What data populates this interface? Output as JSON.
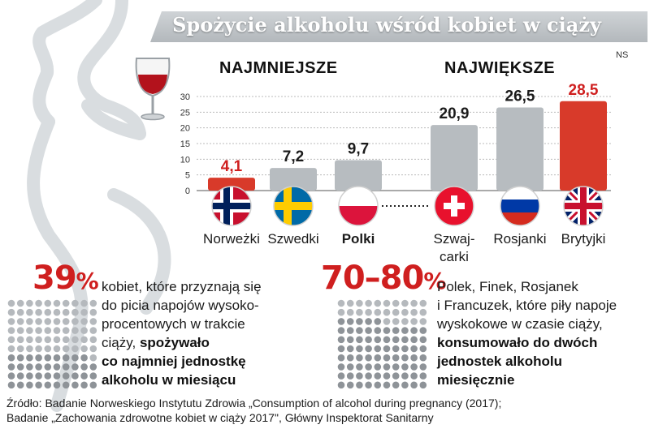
{
  "title": "Spożycie alkoholu wśród kobiet w ciąży",
  "unit_note": "NS",
  "groups": {
    "smallest": "NAJMNIEJSZE",
    "largest": "NAJWIĘKSZE"
  },
  "chart_data": {
    "type": "bar",
    "categories": [
      "Norweżki",
      "Szwedki",
      "Polki",
      "Szwaj-carki",
      "Rosjanki",
      "Brytyjki"
    ],
    "values": [
      4.1,
      7.2,
      9.7,
      20.9,
      26.5,
      28.5
    ],
    "value_labels": [
      "4,1",
      "7,2",
      "9,7",
      "20,9",
      "26,5",
      "28,5"
    ],
    "label_colors": [
      "#cf1f1f",
      "#1b1b1b",
      "#1b1b1b",
      "#1b1b1b",
      "#1b1b1b",
      "#cf1f1f"
    ],
    "bar_colors": [
      "#d83a2a",
      "#b7bcc0",
      "#b7bcc0",
      "#b7bcc0",
      "#b7bcc0",
      "#d83a2a"
    ],
    "highlight": "Polki",
    "flags": [
      "norway-flag",
      "sweden-flag",
      "poland-flag",
      "switzerland-flag",
      "russia-flag",
      "uk-flag"
    ],
    "ylim": [
      0,
      30
    ],
    "yticks": [
      0,
      5,
      10,
      15,
      20,
      25,
      30
    ],
    "grid": true
  },
  "stats": [
    {
      "number": "39",
      "percent": "%",
      "text_lines": [
        "kobiet, które przyznają się",
        "do picia napojów wysoko-",
        "procentowych w trakcie",
        "ciąży,"
      ],
      "bold_inline": "spożywało",
      "bold_lines": [
        "co najmniej jednostkę",
        "alkoholu w miesiącu"
      ],
      "dots_highlighted_fraction": 0.39
    },
    {
      "number": "70–80",
      "percent": "%",
      "text_lines": [
        "Polek, Finek, Rosjanek",
        "i Francuzek, które piły napoje",
        "wyskokowe w czasie ciąży,"
      ],
      "bold_lines": [
        "konsumowało do dwóch",
        "jednostek alkoholu",
        "miesięcznie"
      ],
      "dots_highlighted_fraction": 0.75
    }
  ],
  "source_lines": [
    "Źródło: Badanie Norweskiego Instytutu Zdrowia „Consumption of alcohol during pregnancy (2017);",
    "Badanie „Zachowania zdrowotne kobiet w ciąży 2017\", Główny Inspektorat Sanitarny"
  ],
  "colors": {
    "accent": "#cf1f1f",
    "bar_neutral": "#b7bcc0",
    "bar_highlight": "#d83a2a",
    "dot": "#b5b9bd",
    "silhouette": "#dde1e4"
  }
}
